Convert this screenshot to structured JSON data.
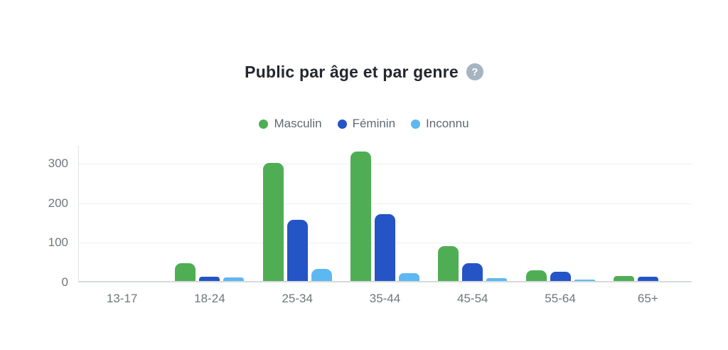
{
  "header": {
    "help_glyph": "?"
  },
  "chart_data": {
    "type": "bar",
    "title": "Public par âge et par genre",
    "categories": [
      "13-17",
      "18-24",
      "25-34",
      "35-44",
      "45-54",
      "55-64",
      "65+"
    ],
    "series": [
      {
        "name": "Masculin",
        "color": "#4fae54",
        "values": [
          1,
          48,
          302,
          330,
          91,
          30,
          16
        ]
      },
      {
        "name": "Féminin",
        "color": "#2454c6",
        "values": [
          1,
          15,
          158,
          172,
          48,
          27,
          14
        ]
      },
      {
        "name": "Inconnu",
        "color": "#5db8f1",
        "values": [
          1,
          13,
          35,
          24,
          10,
          7,
          0
        ]
      }
    ],
    "xlabel": "",
    "ylabel": "",
    "yticks": [
      0,
      100,
      200,
      300
    ],
    "ylim": [
      0,
      345
    ],
    "grid": true,
    "legend_position": "top",
    "background": "#ffffff"
  },
  "colors": {
    "title_text": "#23272e",
    "axis_text": "#6f767b",
    "legend_text": "#5f6a72",
    "gridline": "#edf0f2",
    "baseline": "#d6dadc",
    "help_icon_bg": "#a6b3c0"
  }
}
